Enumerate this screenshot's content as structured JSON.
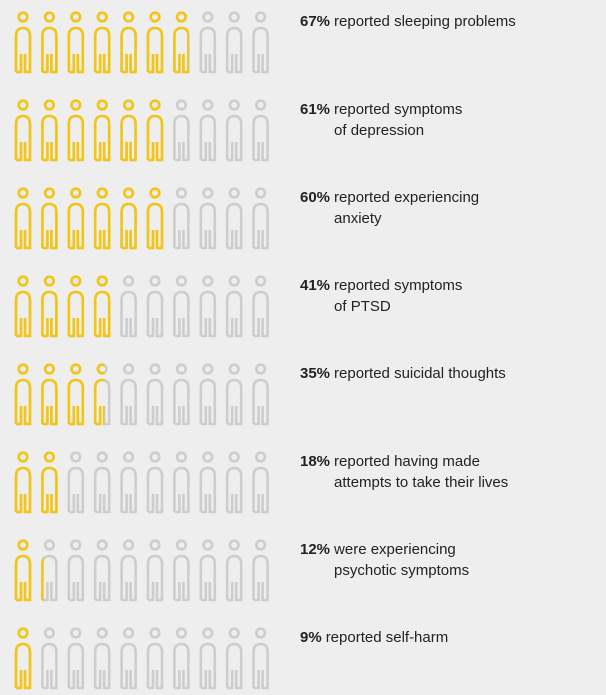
{
  "chart_data": {
    "type": "pictogram",
    "categories": [
      [
        "reported sleeping problems"
      ],
      [
        "reported symptoms",
        "of depression"
      ],
      [
        "reported experiencing",
        "anxiety"
      ],
      [
        "reported symptoms",
        "of PTSD"
      ],
      [
        "reported suicidal thoughts"
      ],
      [
        "reported having made",
        "attempts to take their lives"
      ],
      [
        "were experiencing",
        "psychotic symptoms"
      ],
      [
        "reported self-harm"
      ]
    ],
    "values": [
      67,
      61,
      60,
      41,
      35,
      18,
      12,
      9
    ],
    "value_labels": [
      "67%",
      "61%",
      "60%",
      "41%",
      "35%",
      "18%",
      "12%",
      "9%"
    ],
    "xlim": [
      0,
      100
    ],
    "color": "#f3c614",
    "rest_color": "#cdcdcd"
  }
}
